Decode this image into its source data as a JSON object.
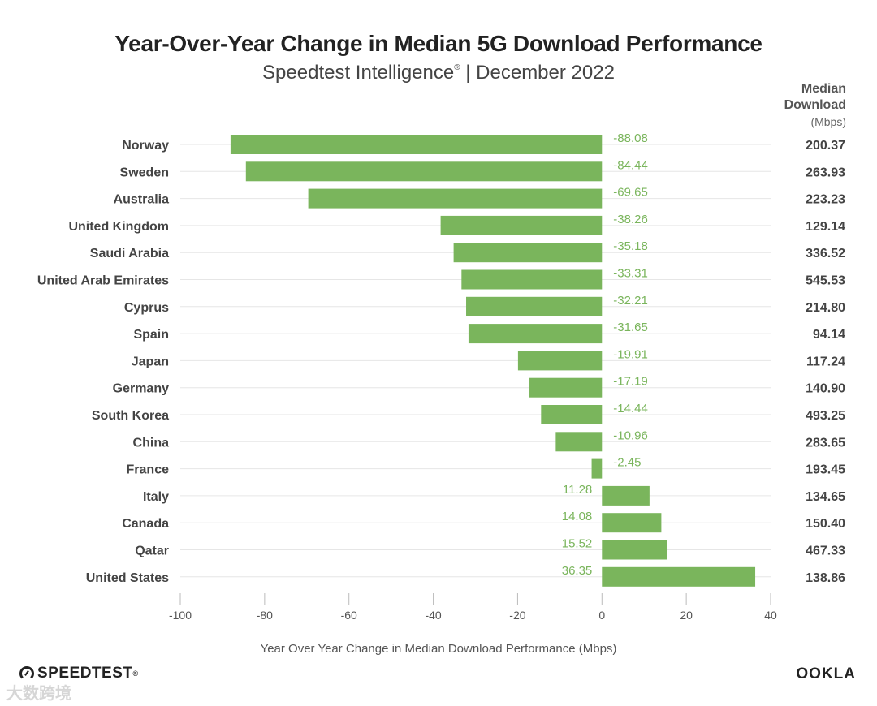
{
  "header": {
    "title": "Year-Over-Year Change in Median 5G Download Performance",
    "subtitle_main": "Speedtest Intelligence",
    "subtitle_mark": "®",
    "subtitle_rest": " | December 2022"
  },
  "right_column": {
    "line1": "Median",
    "line2": "Download",
    "units": "(Mbps)"
  },
  "footer": {
    "left_logo": "SPEEDTEST",
    "left_logo_mark": "®",
    "right_logo": "OOKLA",
    "watermark": "大数跨境"
  },
  "colors": {
    "bar": "#7ab55c",
    "value_label": "#7ab55c",
    "grid": "#e6e6e6"
  },
  "chart_data": {
    "type": "bar",
    "orientation": "horizontal",
    "xlabel": "Year Over Year Change in Median Download Performance (Mbps)",
    "xlim": [
      -100,
      40
    ],
    "xticks": [
      -100,
      -80,
      -60,
      -40,
      -20,
      0,
      20,
      40
    ],
    "categories": [
      "Norway",
      "Sweden",
      "Australia",
      "United Kingdom",
      "Saudi Arabia",
      "United Arab Emirates",
      "Cyprus",
      "Spain",
      "Japan",
      "Germany",
      "South Korea",
      "China",
      "France",
      "Italy",
      "Canada",
      "Qatar",
      "United States"
    ],
    "values": [
      -88.08,
      -84.44,
      -69.65,
      -38.26,
      -35.18,
      -33.31,
      -32.21,
      -31.65,
      -19.91,
      -17.19,
      -14.44,
      -10.96,
      -2.45,
      11.28,
      14.08,
      15.52,
      36.35
    ],
    "value_labels": [
      "-88.08",
      "-84.44",
      "-69.65",
      "-38.26",
      "-35.18",
      "-33.31",
      "-32.21",
      "-31.65",
      "-19.91",
      "-17.19",
      "-14.44",
      "-10.96",
      "-2.45",
      "11.28",
      "14.08",
      "15.52",
      "36.35"
    ],
    "median_download": [
      "200.37",
      "263.93",
      "223.23",
      "129.14",
      "336.52",
      "545.53",
      "214.80",
      "94.14",
      "117.24",
      "140.90",
      "493.25",
      "283.65",
      "193.45",
      "134.65",
      "150.40",
      "467.33",
      "138.86"
    ]
  }
}
